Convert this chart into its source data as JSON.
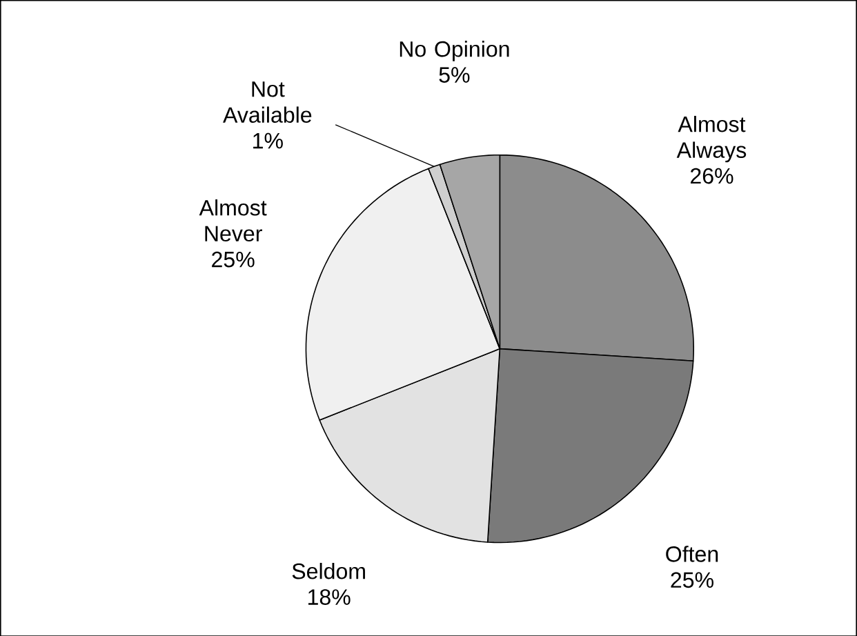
{
  "chart_data": {
    "type": "pie",
    "categories": [
      "Almost Always",
      "Often",
      "Seldom",
      "Almost Never",
      "Not Available",
      "No Opinion"
    ],
    "values": [
      26,
      25,
      18,
      25,
      1,
      5
    ],
    "value_labels": [
      "26%",
      "25%",
      "18%",
      "25%",
      "1%",
      "5%"
    ],
    "colors": [
      "#8c8c8c",
      "#7a7a7a",
      "#e2e2e2",
      "#f0f0f0",
      "#cfcfcf",
      "#a6a6a6"
    ]
  }
}
